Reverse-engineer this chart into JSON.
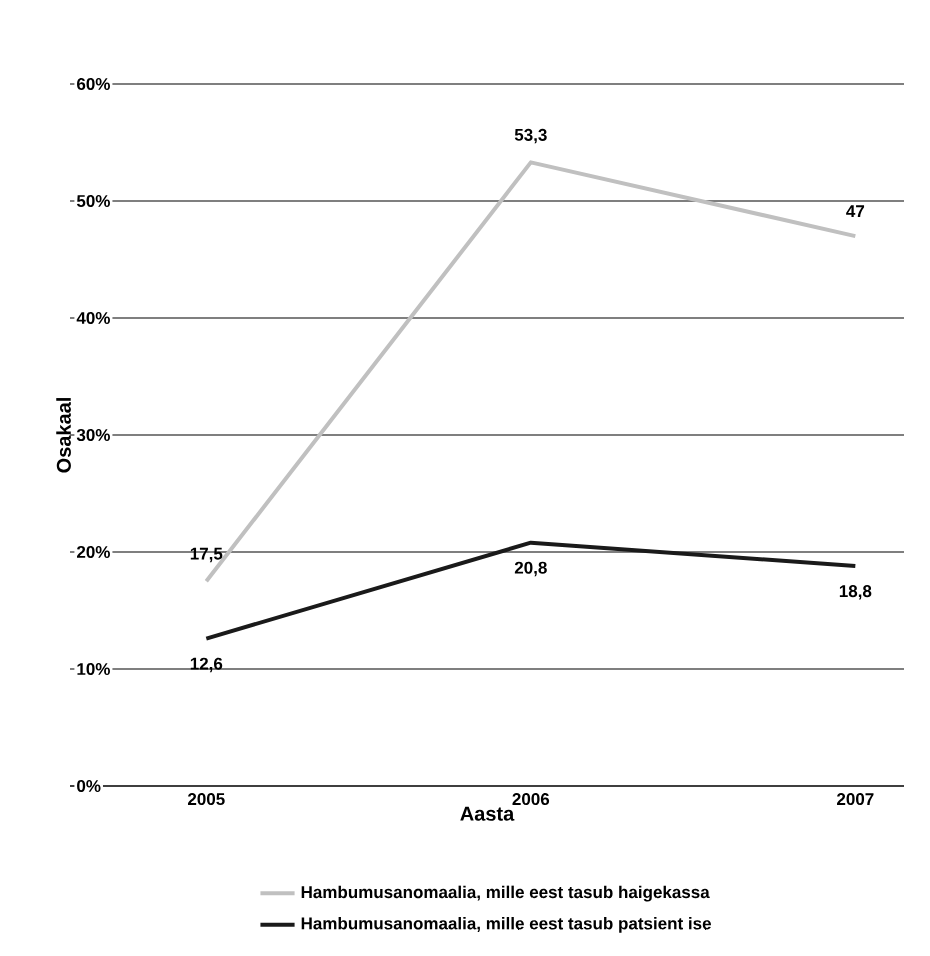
{
  "chart_data": {
    "type": "line",
    "xlabel": "Aasta",
    "ylabel": "Osakaal",
    "categories": [
      "2005",
      "2006",
      "2007"
    ],
    "series": [
      {
        "name": "Hambumusanomaalia, mille eest tasub haigekassa",
        "color": "#c0c0c0",
        "values": [
          17.5,
          53.3,
          47
        ],
        "value_labels": [
          "17,5",
          "53,3",
          "47"
        ]
      },
      {
        "name": "Hambumusanomaalia, mille eest tasub patsient ise",
        "color": "#1a1a1a",
        "values": [
          12.6,
          20.8,
          18.8
        ],
        "value_labels": [
          "12,6",
          "20,8",
          "18,8"
        ]
      }
    ],
    "ylim": [
      0,
      60
    ],
    "yticks": [
      {
        "value": 0,
        "label": "0%"
      },
      {
        "value": 10,
        "label": "10%"
      },
      {
        "value": 20,
        "label": "20%"
      },
      {
        "value": 30,
        "label": "30%"
      },
      {
        "value": 40,
        "label": "40%"
      },
      {
        "value": 50,
        "label": "50%"
      },
      {
        "value": 60,
        "label": "60%"
      }
    ],
    "grid": "y",
    "legend": "bottom",
    "marker": "none",
    "line_style": "solid"
  }
}
